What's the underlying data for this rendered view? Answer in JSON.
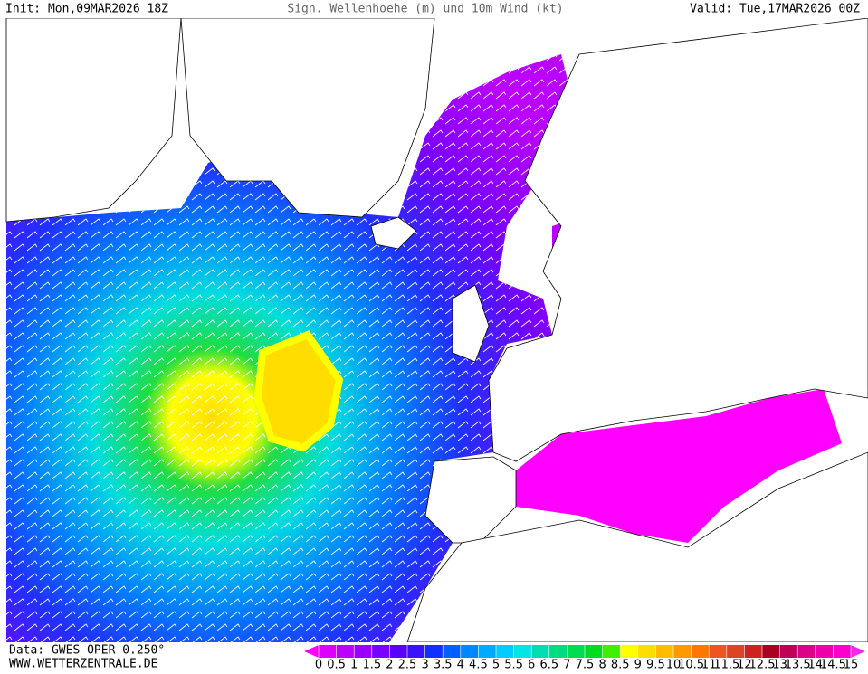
{
  "header": {
    "init": "Init: Mon,09MAR2026 18Z",
    "title": "Sign. Wellenhoehe (m) und 10m Wind (kt)",
    "valid": "Valid: Tue,17MAR2026 00Z"
  },
  "footer": {
    "data": "Data: GWES OPER 0.250°",
    "site": "WWW.WETTERZENTRALE.DE"
  },
  "legend": {
    "labels": [
      0,
      0.5,
      1,
      1.5,
      2,
      2.5,
      3,
      3.5,
      4,
      4.5,
      5,
      5.5,
      6,
      6.5,
      7,
      7.5,
      8,
      8.5,
      9,
      9.5,
      10,
      10.5,
      11,
      11.5,
      12,
      12.5,
      13,
      13.5,
      14,
      14.5,
      15
    ],
    "colors": [
      "#ff00ff",
      "#dd00ff",
      "#bb00ff",
      "#9900ff",
      "#7a00ff",
      "#5a00ff",
      "#3a10ff",
      "#1030ff",
      "#0060ff",
      "#0088ff",
      "#00aaff",
      "#00ccff",
      "#00e5e5",
      "#00ddb0",
      "#00dd80",
      "#00dd50",
      "#00dd20",
      "#40ee00",
      "#ffff00",
      "#ffdd00",
      "#ffbb00",
      "#ff9900",
      "#ff7700",
      "#ee5522",
      "#dd4422",
      "#cc2222",
      "#aa0022",
      "#bb0055",
      "#dd0088",
      "#ee00aa",
      "#ff00cc",
      "#ff22ee"
    ]
  }
}
